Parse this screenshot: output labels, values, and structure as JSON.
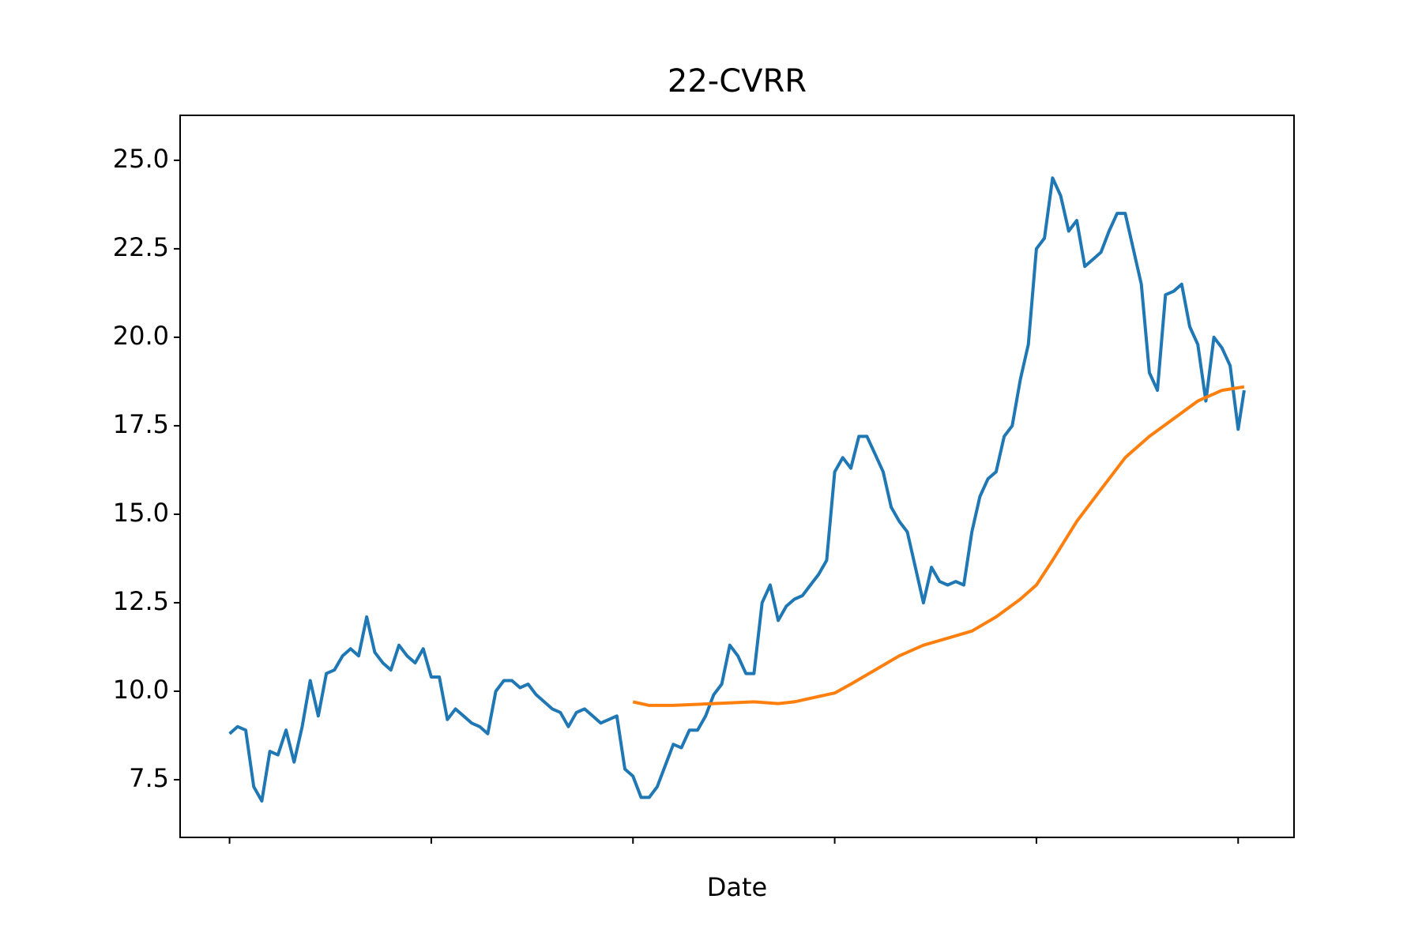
{
  "chart_data": {
    "type": "line",
    "title": "22-CVRR",
    "x_label": "Date",
    "xlim": [
      -24.5,
      527.7
    ],
    "xticks": [
      0,
      100,
      200,
      300,
      400,
      500
    ],
    "ylim": [
      5.87,
      26.27
    ],
    "yticks": [
      7.5,
      10.0,
      12.5,
      15.0,
      17.5,
      20.0,
      22.5,
      25.0
    ],
    "series": [
      {
        "color": "#1f77b4",
        "x": [
          0,
          4,
          8,
          12,
          16,
          20,
          24,
          28,
          32,
          36,
          40,
          44,
          48,
          52,
          56,
          60,
          64,
          68,
          72,
          76,
          80,
          84,
          88,
          92,
          96,
          100,
          104,
          108,
          112,
          116,
          120,
          124,
          128,
          132,
          136,
          140,
          144,
          148,
          152,
          156,
          160,
          164,
          168,
          172,
          176,
          180,
          184,
          188,
          192,
          196,
          200,
          204,
          208,
          212,
          216,
          220,
          224,
          228,
          232,
          236,
          240,
          244,
          248,
          252,
          256,
          260,
          264,
          268,
          272,
          276,
          280,
          284,
          288,
          292,
          296,
          300,
          304,
          308,
          312,
          316,
          320,
          324,
          328,
          332,
          336,
          340,
          344,
          348,
          352,
          356,
          360,
          364,
          368,
          372,
          376,
          380,
          384,
          388,
          392,
          396,
          400,
          404,
          408,
          412,
          416,
          420,
          424,
          428,
          432,
          436,
          440,
          444,
          448,
          452,
          456,
          460,
          464,
          468,
          472,
          476,
          480,
          484,
          488,
          492,
          496,
          500,
          503
        ],
        "values": [
          8.8,
          9.0,
          8.9,
          7.3,
          6.9,
          8.3,
          8.2,
          8.9,
          8.0,
          9.0,
          10.3,
          9.3,
          10.5,
          10.6,
          11.0,
          11.2,
          11.0,
          12.1,
          11.1,
          10.8,
          10.6,
          11.3,
          11.0,
          10.8,
          11.2,
          10.4,
          10.4,
          9.2,
          9.5,
          9.3,
          9.1,
          9.0,
          8.8,
          10.0,
          10.3,
          10.3,
          10.1,
          10.2,
          9.9,
          9.7,
          9.5,
          9.4,
          9.0,
          9.4,
          9.5,
          9.3,
          9.1,
          9.2,
          9.3,
          7.8,
          7.6,
          7.0,
          7.0,
          7.3,
          7.9,
          8.5,
          8.4,
          8.9,
          8.9,
          9.3,
          9.9,
          10.2,
          11.3,
          11.0,
          10.5,
          10.5,
          12.5,
          13.0,
          12.0,
          12.4,
          12.6,
          12.7,
          13.0,
          13.3,
          13.7,
          16.2,
          16.6,
          16.3,
          17.2,
          17.2,
          16.7,
          16.2,
          15.2,
          14.8,
          14.5,
          13.5,
          12.5,
          13.5,
          13.1,
          13.0,
          13.1,
          13.0,
          14.5,
          15.5,
          16.0,
          16.2,
          17.2,
          17.5,
          18.8,
          19.8,
          22.5,
          22.8,
          24.5,
          24.0,
          23.0,
          23.3,
          22.0,
          22.2,
          22.4,
          23.0,
          23.5,
          23.5,
          22.5,
          21.5,
          19.0,
          18.5,
          21.2,
          21.3,
          21.5,
          20.3,
          19.8,
          18.2,
          20.0,
          19.7,
          19.2,
          17.4,
          18.5
        ]
      },
      {
        "color": "#ff7f0e",
        "x": [
          200,
          208,
          220,
          240,
          260,
          272,
          280,
          300,
          308,
          320,
          332,
          344,
          356,
          368,
          380,
          392,
          400,
          408,
          420,
          432,
          444,
          456,
          468,
          480,
          492,
          503
        ],
        "values": [
          9.7,
          9.6,
          9.6,
          9.65,
          9.7,
          9.65,
          9.7,
          9.95,
          10.2,
          10.6,
          11.0,
          11.3,
          11.5,
          11.7,
          12.1,
          12.6,
          13.0,
          13.7,
          14.8,
          15.7,
          16.6,
          17.2,
          17.7,
          18.2,
          18.5,
          18.6
        ]
      }
    ]
  }
}
